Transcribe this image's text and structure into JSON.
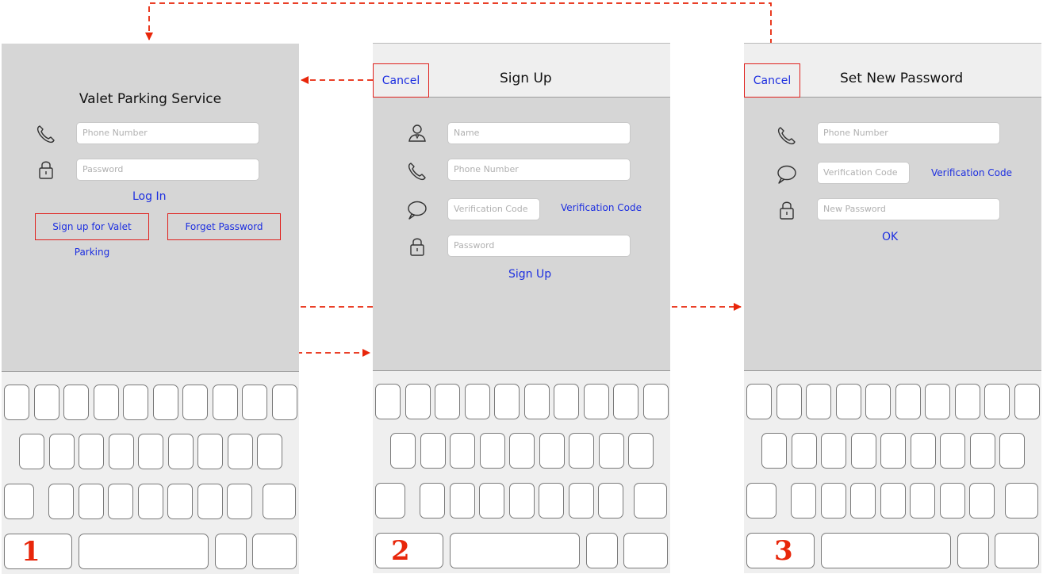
{
  "screen1": {
    "number": "1",
    "title": "Valet Parking Service",
    "phone_placeholder": "Phone Number",
    "password_placeholder": "Password",
    "login_label": "Log In",
    "signup_label": "Sign up for Valet Parking",
    "forget_label": "Forget Password"
  },
  "screen2": {
    "number": "2",
    "cancel_label": "Cancel",
    "title": "Sign Up",
    "name_placeholder": "Name",
    "phone_placeholder": "Phone Number",
    "code_placeholder": "Verification Code",
    "code_link": "Verification Code",
    "password_placeholder": "Password",
    "signup_label": "Sign Up"
  },
  "screen3": {
    "number": "3",
    "cancel_label": "Cancel",
    "title": "Set New Password",
    "phone_placeholder": "Phone Number",
    "code_placeholder": "Verification Code",
    "code_link": "Verification Code",
    "newpass_placeholder": "New Password",
    "ok_label": "OK"
  },
  "colors": {
    "link": "#1d2fe0",
    "highlight": "#e0201c",
    "screen_bg": "#d6d6d6",
    "keyboard_bg": "#efefef"
  }
}
